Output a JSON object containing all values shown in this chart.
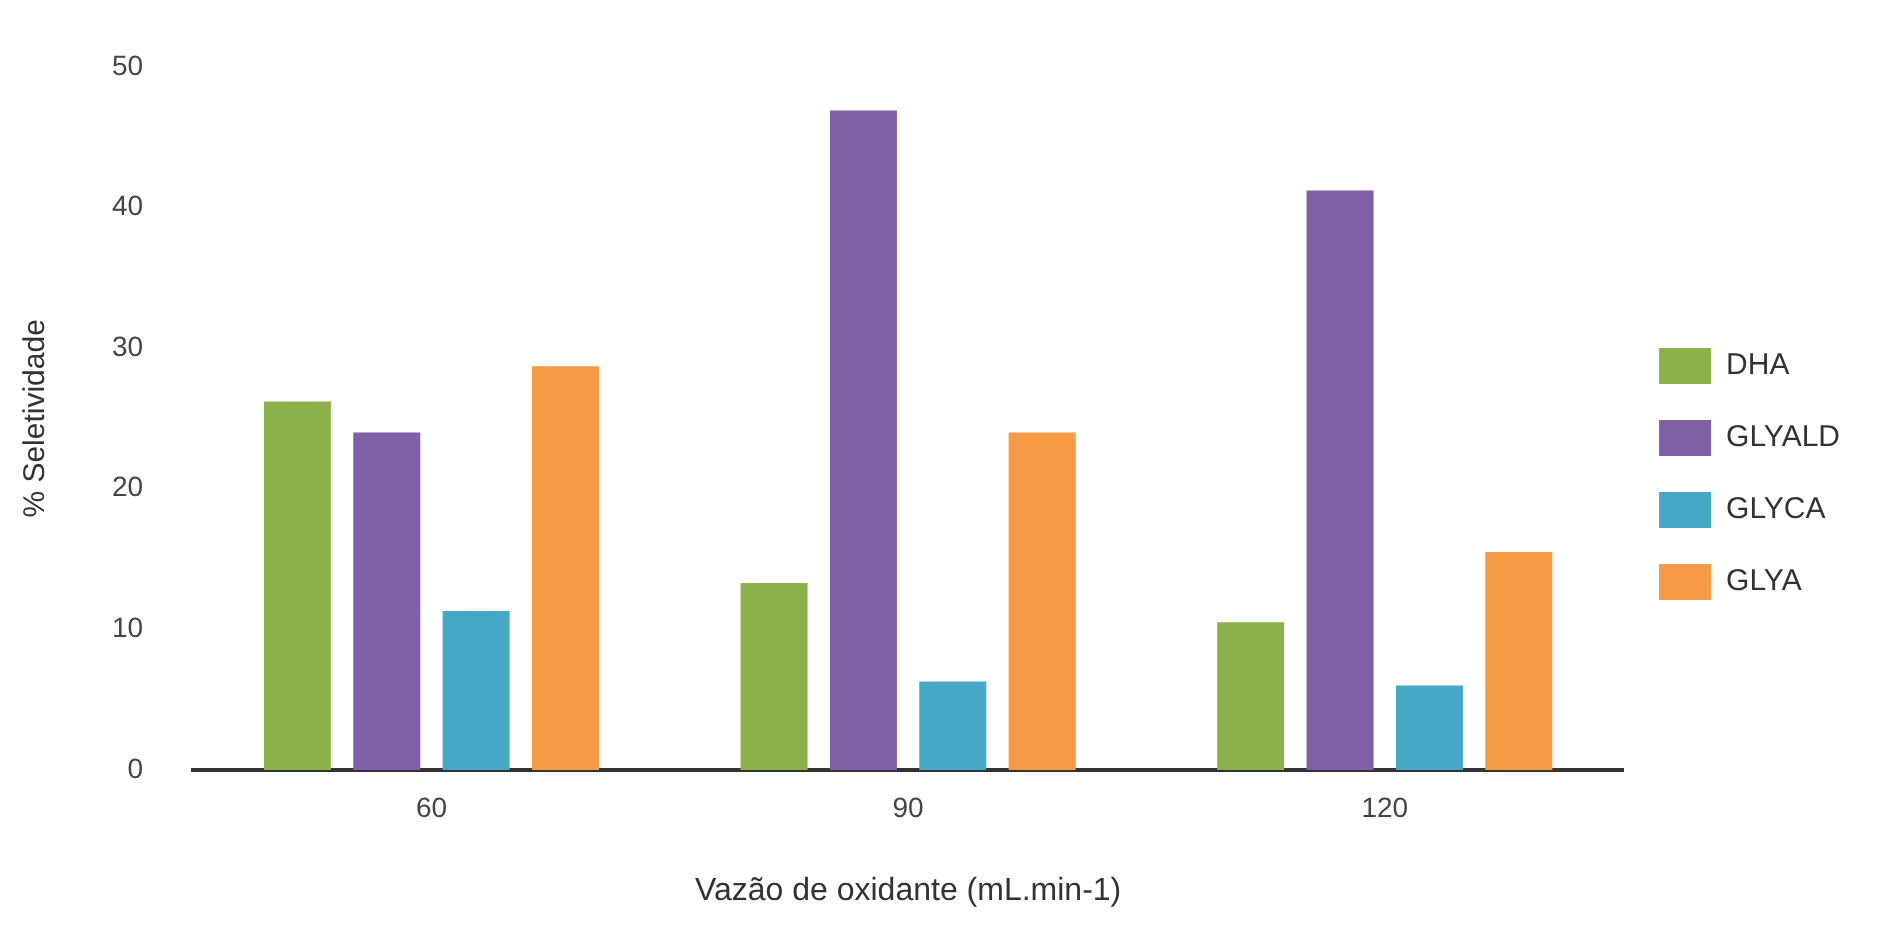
{
  "chart_data": {
    "type": "bar",
    "xlabel": "Vazão de oxidante (mL.min-1)",
    "ylabel": "% Seletividade",
    "categories": [
      "60",
      "90",
      "120"
    ],
    "series": [
      {
        "name": "DHA",
        "color": "#8db14a",
        "values": [
          26.2,
          13.3,
          10.5
        ]
      },
      {
        "name": "GLYALD",
        "color": "#7f5fa6",
        "values": [
          24,
          46.9,
          41.2
        ]
      },
      {
        "name": "GLYCA",
        "color": "#45a9c6",
        "values": [
          11.3,
          6.3,
          6
        ]
      },
      {
        "name": "GLYA",
        "color": "#f59a45",
        "values": [
          28.7,
          24,
          15.5
        ]
      }
    ],
    "ylim": [
      0,
      50
    ],
    "yticks": [
      0,
      10,
      20,
      30,
      40,
      50
    ],
    "grid": false,
    "legend": "right"
  }
}
